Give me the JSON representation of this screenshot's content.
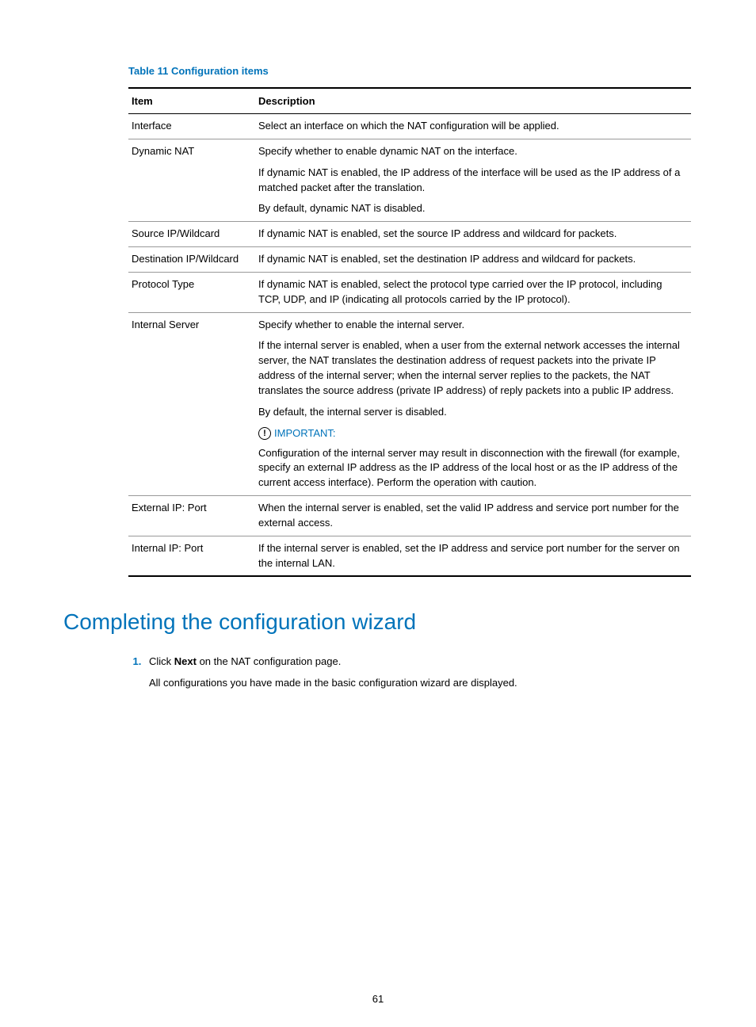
{
  "colors": {
    "accent": "#0073ba",
    "text": "#000000",
    "rule_light": "#999999",
    "background": "#ffffff"
  },
  "table": {
    "caption": "Table 11 Configuration items",
    "headers": {
      "item": "Item",
      "description": "Description"
    },
    "rows": {
      "interface": {
        "item": "Interface",
        "desc": "Select an interface on which the NAT configuration will be applied."
      },
      "dynamic_nat": {
        "item": "Dynamic NAT",
        "p1": "Specify whether to enable dynamic NAT on the interface.",
        "p2": "If dynamic NAT is enabled, the IP address of the interface will be used as the IP address of a matched packet after the translation.",
        "p3": "By default, dynamic NAT is disabled."
      },
      "source_ip": {
        "item": "Source IP/Wildcard",
        "desc": "If dynamic NAT is enabled, set the source IP address and wildcard for packets."
      },
      "dest_ip": {
        "item": "Destination IP/Wildcard",
        "desc": "If dynamic NAT is enabled, set the destination IP address and wildcard for packets."
      },
      "protocol": {
        "item": "Protocol Type",
        "desc": "If dynamic NAT is enabled, select the protocol type carried over the IP protocol, including TCP, UDP, and IP (indicating all protocols carried by the IP protocol)."
      },
      "internal_server": {
        "item": "Internal Server",
        "p1": "Specify whether to enable the internal server.",
        "p2": "If the internal server is enabled, when a user from the external network accesses the internal server, the NAT translates the destination address of request packets into the private IP address of the internal server; when the internal server replies to the packets, the NAT translates the source address (private IP address) of reply packets into a public IP address.",
        "p3": "By default, the internal server is disabled.",
        "important_label": "IMPORTANT:",
        "p4": "Configuration of the internal server may result in disconnection with the firewall (for example, specify an external IP address as the IP address of the local host or as the IP address of the current access interface). Perform the operation with caution."
      },
      "external_ip": {
        "item": "External IP: Port",
        "desc": "When the internal server is enabled, set the valid IP address and service port number for the external access."
      },
      "internal_ip": {
        "item": "Internal IP: Port",
        "desc": "If the internal server is enabled, set the IP address and service port number for the server on the internal LAN."
      }
    }
  },
  "section_heading": "Completing the configuration wizard",
  "step1": {
    "prefix": "Click ",
    "bold": "Next",
    "suffix": " on the NAT configuration page.",
    "sub": "All configurations you have made in the basic configuration wizard are displayed."
  },
  "page_number": "61"
}
